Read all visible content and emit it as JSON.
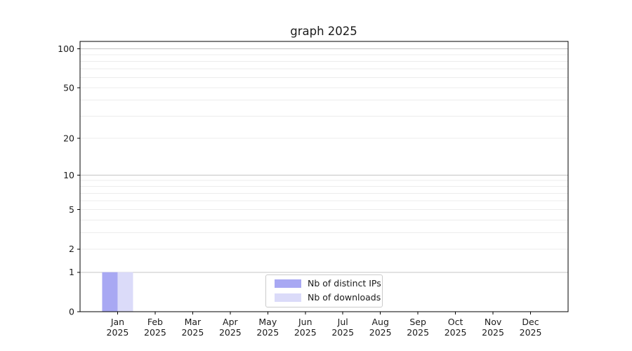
{
  "chart_data": {
    "type": "bar",
    "title": "graph 2025",
    "categories": [
      "Jan 2025",
      "Feb 2025",
      "Mar 2025",
      "Apr 2025",
      "May 2025",
      "Jun 2025",
      "Jul 2025",
      "Aug 2025",
      "Sep 2025",
      "Oct 2025",
      "Nov 2025",
      "Dec 2025"
    ],
    "series": [
      {
        "name": "Nb of distinct IPs",
        "color": "#a8a8f3",
        "values": [
          1,
          0,
          0,
          0,
          0,
          0,
          0,
          0,
          0,
          0,
          0,
          0
        ]
      },
      {
        "name": "Nb of downloads",
        "color": "#dbdbf9",
        "values": [
          1,
          0,
          0,
          0,
          0,
          0,
          0,
          0,
          0,
          0,
          0,
          0
        ]
      }
    ],
    "y_axis": {
      "scale": "log1p",
      "tick_labels": [
        0,
        1,
        2,
        5,
        10,
        20,
        50,
        100
      ],
      "major_gridlines": [
        1,
        10,
        100
      ],
      "minor_gridlines": [
        2,
        3,
        4,
        5,
        6,
        7,
        8,
        9,
        20,
        30,
        40,
        50,
        60,
        70,
        80,
        90
      ],
      "ylim": [
        0,
        114
      ]
    },
    "legend": {
      "position": "lower center"
    },
    "grid": true
  },
  "colors": {
    "background": "#ffffff",
    "spine": "#000000",
    "grid_major": "#c4c4c4",
    "grid_minor": "#ececec",
    "tick": "#000000",
    "text": "#1a1a1a",
    "legend_border": "#cbcbcb"
  }
}
